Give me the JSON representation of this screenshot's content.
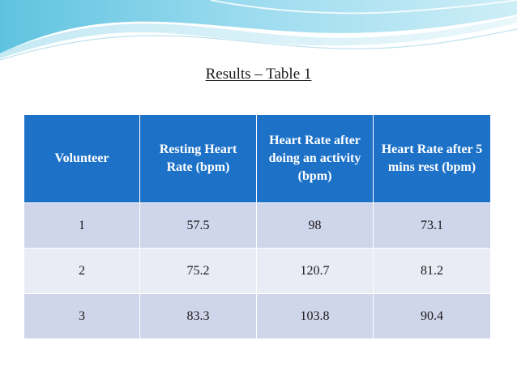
{
  "slide": {
    "title": "Results – Table 1"
  },
  "table": {
    "headers": [
      "Volunteer",
      "Resting Heart Rate (bpm)",
      "Heart Rate after doing an activity (bpm)",
      "Heart Rate after 5 mins rest (bpm)"
    ],
    "rows": [
      [
        "1",
        "57.5",
        "98",
        "73.1"
      ],
      [
        "2",
        "75.2",
        "120.7",
        "81.2"
      ],
      [
        "3",
        "83.3",
        "103.8",
        "90.4"
      ]
    ]
  },
  "colors": {
    "header_bg": "#1d72c8",
    "row_odd": "#cfd5ea",
    "row_even": "#e9ebf5",
    "wave": "#7fd0e6"
  }
}
